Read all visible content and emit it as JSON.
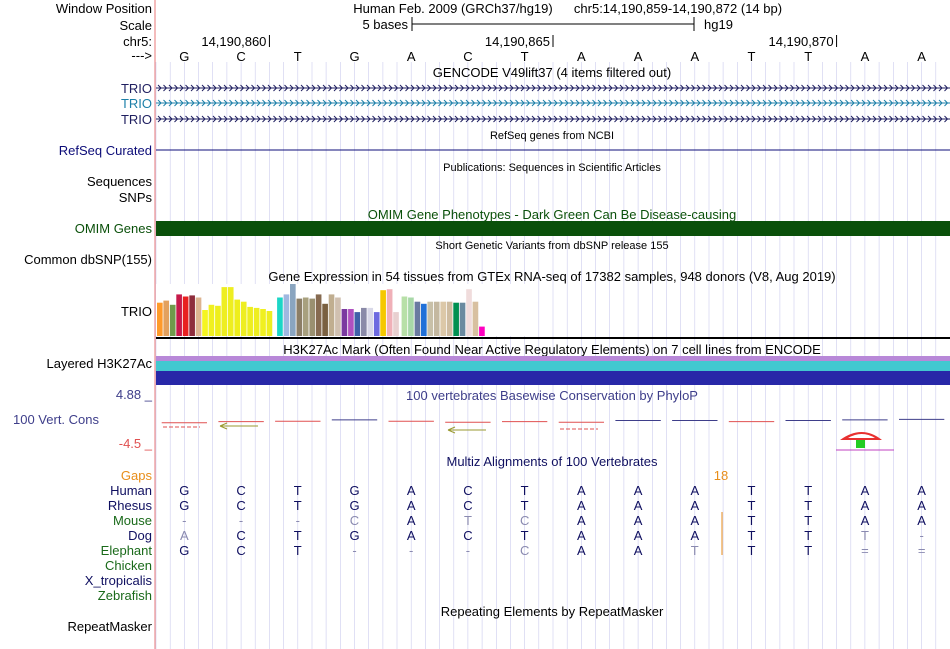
{
  "position": {
    "label": "Window Position",
    "assembly_text": "Human Feb. 2009 (GRCh37/hg19)",
    "range_text": "chr5:14,190,859-14,190,872 (14 bp)"
  },
  "scale": {
    "label": "Scale",
    "bar_text": "5 bases",
    "db_text": "hg19"
  },
  "ruler": {
    "chrom_label": "chr5:",
    "strand_label": "--->",
    "ticks": [
      "14,190,860",
      "14,190,865",
      "14,190,870"
    ],
    "bases": [
      "G",
      "C",
      "T",
      "G",
      "A",
      "C",
      "T",
      "A",
      "A",
      "A",
      "T",
      "T",
      "A",
      "A"
    ]
  },
  "gencode": {
    "title": "GENCODE V49lift37 (4 items filtered out)",
    "tracks": [
      {
        "label": "TRIO",
        "color": "#1f1f60"
      },
      {
        "label": "TRIO",
        "color": "#1c7fa8"
      },
      {
        "label": "TRIO",
        "color": "#1f1f60"
      }
    ]
  },
  "refseq": {
    "title": "RefSeq genes from NCBI",
    "label": "RefSeq Curated",
    "color": "#0c0c78"
  },
  "publications": {
    "title": "Publications: Sequences in Scientific Articles",
    "labels": [
      "Sequences",
      "SNPs"
    ]
  },
  "omim": {
    "title": "OMIM Gene Phenotypes - Dark Green Can Be Disease-causing",
    "label": "OMIM Genes",
    "color": "#0a500a"
  },
  "dbsnp": {
    "title": "Short Genetic Variants from dbSNP release 155",
    "label": "Common dbSNP(155)"
  },
  "gtex": {
    "title": "Gene Expression in 54 tissues from GTEx RNA-seq of 17382 samples, 948 donors (V8, Aug 2019)",
    "label": "TRIO",
    "bars": [
      {
        "value": 0.64,
        "color": "#ff9a2a"
      },
      {
        "value": 0.68,
        "color": "#e3a15e"
      },
      {
        "value": 0.6,
        "color": "#6f9a4a"
      },
      {
        "value": 0.8,
        "color": "#c61a4a"
      },
      {
        "value": 0.76,
        "color": "#e82020"
      },
      {
        "value": 0.78,
        "color": "#8e2d3c"
      },
      {
        "value": 0.74,
        "color": "#ddb490"
      },
      {
        "value": 0.5,
        "color": "#f5f520"
      },
      {
        "value": 0.6,
        "color": "#f0f020"
      },
      {
        "value": 0.58,
        "color": "#eeee1c"
      },
      {
        "value": 0.94,
        "color": "#eeee20"
      },
      {
        "value": 0.94,
        "color": "#eeee20"
      },
      {
        "value": 0.7,
        "color": "#eeee1c"
      },
      {
        "value": 0.66,
        "color": "#eeee20"
      },
      {
        "value": 0.56,
        "color": "#eeee20"
      },
      {
        "value": 0.54,
        "color": "#eeee20"
      },
      {
        "value": 0.52,
        "color": "#f0f020"
      },
      {
        "value": 0.48,
        "color": "#eeee20"
      },
      {
        "value": 0.74,
        "color": "#1cd6c6"
      },
      {
        "value": 0.8,
        "color": "#a0b8e0"
      },
      {
        "value": 1.0,
        "color": "#8aa5c0"
      },
      {
        "value": 0.72,
        "color": "#8c7e66"
      },
      {
        "value": 0.74,
        "color": "#a8a07e"
      },
      {
        "value": 0.72,
        "color": "#9a9070"
      },
      {
        "value": 0.8,
        "color": "#866a50"
      },
      {
        "value": 0.62,
        "color": "#7a6040"
      },
      {
        "value": 0.8,
        "color": "#c0ae90"
      },
      {
        "value": 0.74,
        "color": "#d0c0b0"
      },
      {
        "value": 0.52,
        "color": "#7a3aa0"
      },
      {
        "value": 0.52,
        "color": "#b050c0"
      },
      {
        "value": 0.46,
        "color": "#4060a8"
      },
      {
        "value": 0.54,
        "color": "#8a8aa8"
      },
      {
        "value": 0.54,
        "color": "#d8d8e8"
      },
      {
        "value": 0.46,
        "color": "#6d6ae0"
      },
      {
        "value": 0.88,
        "color": "#f5c800"
      },
      {
        "value": 0.9,
        "color": "#f0b0b8"
      },
      {
        "value": 0.46,
        "color": "#e8d0d0"
      },
      {
        "value": 0.76,
        "color": "#b8e0a8"
      },
      {
        "value": 0.74,
        "color": "#a8d8a8"
      },
      {
        "value": 0.66,
        "color": "#6a7aa0"
      },
      {
        "value": 0.62,
        "color": "#2070d8"
      },
      {
        "value": 0.66,
        "color": "#c8c0a8"
      },
      {
        "value": 0.66,
        "color": "#c4b8a0"
      },
      {
        "value": 0.66,
        "color": "#dcc8a8"
      },
      {
        "value": 0.66,
        "color": "#cfbca0"
      },
      {
        "value": 0.64,
        "color": "#009050"
      },
      {
        "value": 0.64,
        "color": "#6a8aa0"
      },
      {
        "value": 0.9,
        "color": "#f0dcdc"
      },
      {
        "value": 0.66,
        "color": "#d8c0a0"
      },
      {
        "value": 0.18,
        "color": "#ff00c0"
      }
    ]
  },
  "h3k27ac": {
    "title": "H3K27Ac Mark (Often Found Near Active Regulatory Elements) on 7 cell lines from ENCODE",
    "label": "Layered H3K27Ac",
    "layers": [
      "#b888d8",
      "#42c8d0",
      "#2828a8"
    ]
  },
  "phylop": {
    "title": "100 vertebrates Basewise Conservation by PhyloP",
    "label": "100 Vert. Cons",
    "max_label": "4.88 _",
    "min_label": "-4.5 _",
    "color": "#3e3e8a",
    "values": [
      -0.3,
      -0.1,
      -0.05,
      0.2,
      -0.05,
      -0.2,
      -0.1,
      -0.2,
      0.1,
      0.1,
      -0.1,
      0.1,
      0.2,
      0.3
    ]
  },
  "multiz": {
    "title": "Multiz Alignments of 100 Vertebrates",
    "gaps_label": "Gaps",
    "gap_count": "18",
    "species": [
      {
        "name": "Human",
        "color": "#0f0f60",
        "bases": [
          "G",
          "C",
          "T",
          "G",
          "A",
          "C",
          "T",
          "A",
          "A",
          "A",
          "T",
          "T",
          "A",
          "A"
        ]
      },
      {
        "name": "Rhesus",
        "color": "#0f0f60",
        "bases": [
          "G",
          "C",
          "T",
          "G",
          "A",
          "C",
          "T",
          "A",
          "A",
          "A",
          "T",
          "T",
          "A",
          "A"
        ]
      },
      {
        "name": "Mouse",
        "color": "#1a6a1a",
        "bases": [
          "-",
          "-",
          "-",
          "C",
          "A",
          "T",
          "C",
          "A",
          "A",
          "A",
          "T",
          "T",
          "A",
          "A"
        ]
      },
      {
        "name": "Dog",
        "color": "#0f0f60",
        "bases": [
          "A",
          "C",
          "T",
          "G",
          "A",
          "C",
          "T",
          "A",
          "A",
          "A",
          "T",
          "T",
          "T",
          "-"
        ]
      },
      {
        "name": "Elephant",
        "color": "#1a6a1a",
        "bases": [
          "G",
          "C",
          "T",
          "-",
          "-",
          "-",
          "C",
          "A",
          "A",
          "T",
          "T",
          "T",
          "=",
          "="
        ]
      },
      {
        "name": "Chicken",
        "color": "#1a6a1a",
        "bases": []
      },
      {
        "name": "X_tropicalis",
        "color": "#0f0f60",
        "bases": []
      },
      {
        "name": "Zebrafish",
        "color": "#1a6a1a",
        "bases": []
      }
    ]
  },
  "repeatmasker": {
    "title": "Repeating Elements by RepeatMasker",
    "label": "RepeatMasker"
  },
  "colors": {
    "label_blue": "#101060",
    "label_green": "#1a6a1a",
    "label_orange": "#e88e1a",
    "label_phylop": "#3e3e8a",
    "guide": "#ccccee",
    "separator": "#e87a7a"
  }
}
